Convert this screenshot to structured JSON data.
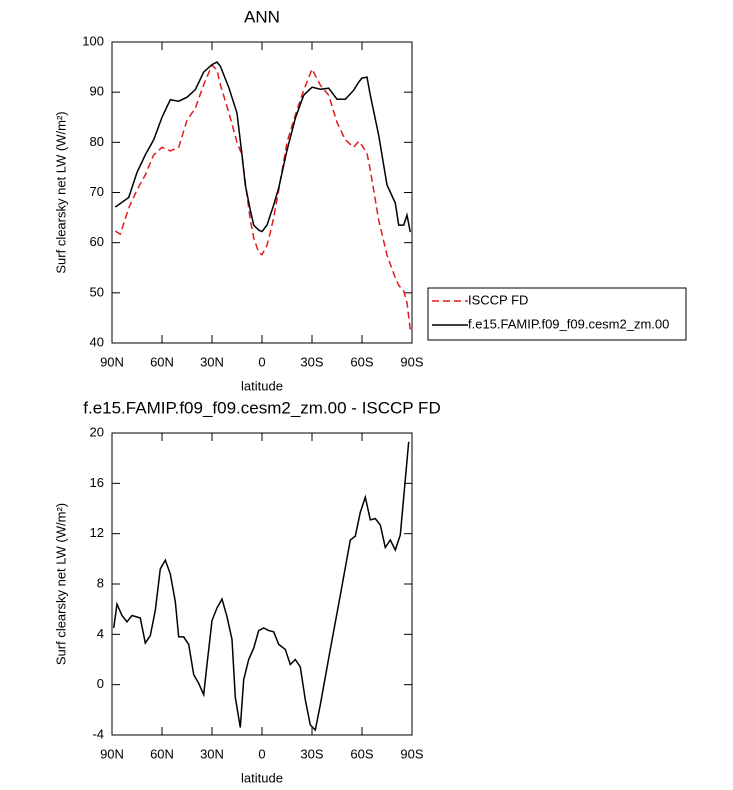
{
  "chart_data": [
    {
      "type": "line",
      "title": "ANN",
      "x_label": "latitude",
      "y_label": "Surf clearsky net LW (W/m²)",
      "x": [
        88,
        85,
        80,
        75,
        70,
        65,
        60,
        55,
        50,
        45,
        40,
        35,
        30,
        27,
        25,
        20,
        15,
        12,
        10,
        7,
        5,
        2,
        0,
        -3,
        -5,
        -7,
        -10,
        -15,
        -20,
        -25,
        -30,
        -35,
        -40,
        -45,
        -50,
        -55,
        -58,
        -60,
        -63,
        -65,
        -70,
        -75,
        -80,
        -82,
        -85,
        -87,
        -89
      ],
      "series": [
        {
          "name": "ISCCP FD",
          "color": "#e41a1c",
          "style": "dashed",
          "values": [
            62.3,
            61.7,
            66.9,
            70.5,
            73.5,
            77.5,
            79,
            78.3,
            79,
            84.4,
            86.8,
            91.5,
            95.4,
            94.4,
            91.5,
            86,
            80,
            77.5,
            72,
            64.5,
            61,
            58,
            57.6,
            59.5,
            62,
            65,
            70.5,
            80,
            85.4,
            90.4,
            94.6,
            91.4,
            89.4,
            84,
            80.5,
            79,
            80.2,
            79.4,
            77.8,
            74.5,
            64.5,
            57.5,
            53,
            51.5,
            50.4,
            48,
            42.6
          ]
        },
        {
          "name": "f.e15.FAMIP.f09_f09.cesm2_zm.00",
          "color": "#000000",
          "style": "solid",
          "values": [
            67.1,
            67.8,
            69,
            74,
            77.5,
            80.5,
            85,
            88.5,
            88.2,
            89,
            90.5,
            94,
            95.5,
            96,
            95.2,
            91,
            85.8,
            77.5,
            71.5,
            66.5,
            63.5,
            62.5,
            62.2,
            63.5,
            65.5,
            67.5,
            70.9,
            78.4,
            84.8,
            89.4,
            91,
            90.6,
            90.8,
            88.6,
            88.6,
            90.4,
            92,
            92.8,
            93,
            89.4,
            81.4,
            71.5,
            67.9,
            63.5,
            63.5,
            65.5,
            62.1
          ]
        }
      ],
      "xlim": [
        90,
        -90
      ],
      "xticks": [
        {
          "value": 90,
          "label": "90N"
        },
        {
          "value": 60,
          "label": "60N"
        },
        {
          "value": 30,
          "label": "30N"
        },
        0,
        {
          "value": -30,
          "label": "30S"
        },
        {
          "value": -60,
          "label": "60S"
        },
        {
          "value": -90,
          "label": "90S"
        }
      ],
      "ylim": [
        40,
        100
      ],
      "yticks": [
        40,
        50,
        60,
        70,
        80,
        90,
        100
      ],
      "legend": "right"
    },
    {
      "type": "line",
      "title": "f.e15.FAMIP.f09_f09.cesm2_zm.00 - ISCCP FD",
      "x_label": "latitude",
      "y_label": "Surf clearsky net LW (W/m²)",
      "x": [
        89,
        87,
        84,
        81,
        78,
        73,
        70,
        67,
        64,
        61,
        58,
        55,
        52,
        50,
        47,
        44,
        41,
        38,
        35,
        33,
        30,
        27,
        24,
        21,
        18,
        16,
        13,
        11,
        8,
        5,
        2,
        -1,
        -4,
        -7,
        -10,
        -14,
        -17,
        -20,
        -23,
        -26,
        -29,
        -32,
        -35,
        -41,
        -47,
        -53,
        -56,
        -59,
        -62,
        -65,
        -68,
        -71,
        -74,
        -77,
        -80,
        -83,
        -86,
        -88
      ],
      "values": [
        4.5,
        6.4,
        5.5,
        5.0,
        5.5,
        5.3,
        3.3,
        3.9,
        5.9,
        9.2,
        9.9,
        8.8,
        6.6,
        3.8,
        3.8,
        3.2,
        0.8,
        0.1,
        -0.8,
        1.6,
        5.1,
        6.1,
        6.8,
        5.4,
        3.6,
        -1.0,
        -3.4,
        0.4,
        2.0,
        2.9,
        4.3,
        4.5,
        4.3,
        4.2,
        3.2,
        2.8,
        1.6,
        2.0,
        1.4,
        -1.2,
        -3.2,
        -3.6,
        -1.6,
        2.8,
        7.1,
        11.5,
        11.8,
        13.7,
        14.9,
        13.1,
        13.2,
        12.7,
        10.9,
        11.5,
        10.7,
        11.9,
        16.3,
        19.3
      ],
      "color": "#000000",
      "xlim": [
        90,
        -90
      ],
      "xticks": [
        {
          "value": 90,
          "label": "90N"
        },
        {
          "value": 60,
          "label": "60N"
        },
        {
          "value": 30,
          "label": "30N"
        },
        0,
        {
          "value": -30,
          "label": "30S"
        },
        {
          "value": -60,
          "label": "60S"
        },
        {
          "value": -90,
          "label": "90S"
        }
      ],
      "ylim": [
        -4,
        20
      ],
      "yticks": [
        -4,
        0,
        4,
        8,
        12,
        16,
        20
      ]
    }
  ]
}
